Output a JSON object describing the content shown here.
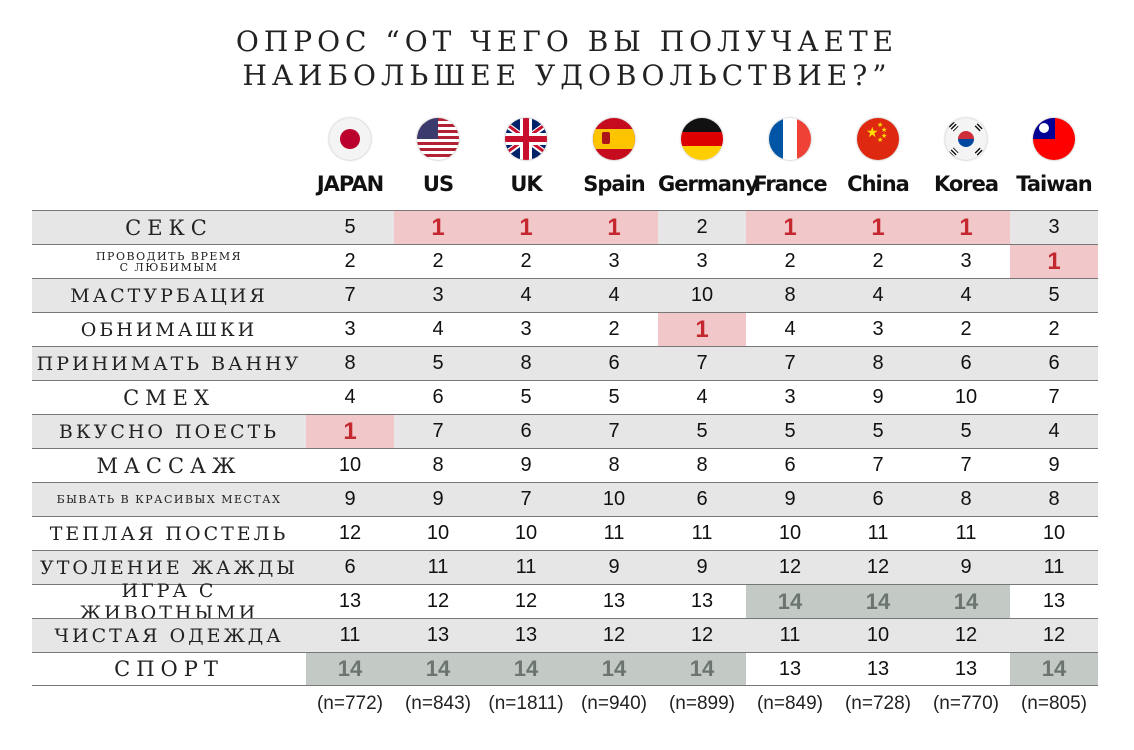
{
  "title": [
    "ОПРОС “ОТ ЧЕГО ВЫ ПОЛУЧАЕТЕ",
    "НАИБОЛЬШЕЕ УДОВОЛЬСТВИЕ?”"
  ],
  "colors": {
    "top_fill": "#f1c7c9",
    "top_text": "#c4282f",
    "bottom_fill": "#c3cac6",
    "bottom_text": "#6a756f",
    "stripe": "#e6e6e6"
  },
  "chart_data": {
    "type": "table",
    "columns": [
      "JAPAN",
      "US",
      "UK",
      "Spain",
      "Germany",
      "France",
      "China",
      "Korea",
      "Taiwan"
    ],
    "flags": [
      "japan-flag-icon",
      "us-flag-icon",
      "uk-flag-icon",
      "spain-flag-icon",
      "germany-flag-icon",
      "france-flag-icon",
      "china-flag-icon",
      "korea-flag-icon",
      "taiwan-flag-icon"
    ],
    "rows": [
      {
        "label": "СЕКС",
        "values": [
          5,
          1,
          1,
          1,
          2,
          1,
          1,
          1,
          3
        ]
      },
      {
        "label": "ПРОВОДИТЬ ВРЕМЯ С ЛЮБИМЫМ",
        "label_lines": [
          "ПРОВОДИТЬ ВРЕМЯ",
          "С ЛЮБИМЫМ"
        ],
        "values": [
          2,
          2,
          2,
          3,
          3,
          2,
          2,
          3,
          1
        ]
      },
      {
        "label": "МАСТУРБАЦИЯ",
        "values": [
          7,
          3,
          4,
          4,
          10,
          8,
          4,
          4,
          5
        ]
      },
      {
        "label": "ОБНИМАШКИ",
        "values": [
          3,
          4,
          3,
          2,
          1,
          4,
          3,
          2,
          2
        ]
      },
      {
        "label": "ПРИНИМАТЬ ВАННУ",
        "values": [
          8,
          5,
          8,
          6,
          7,
          7,
          8,
          6,
          6
        ]
      },
      {
        "label": "СМЕХ",
        "values": [
          4,
          6,
          5,
          5,
          4,
          3,
          9,
          10,
          7
        ]
      },
      {
        "label": "ВКУСНО ПОЕСТЬ",
        "values": [
          1,
          7,
          6,
          7,
          5,
          5,
          5,
          5,
          4
        ]
      },
      {
        "label": "МАССАЖ",
        "values": [
          10,
          8,
          9,
          8,
          8,
          6,
          7,
          7,
          9
        ]
      },
      {
        "label": "БЫВАТЬ В КРАСИВЫХ МЕСТАХ",
        "values": [
          9,
          9,
          7,
          10,
          6,
          9,
          6,
          8,
          8
        ]
      },
      {
        "label": "ТЕПЛАЯ ПОСТЕЛЬ",
        "values": [
          12,
          10,
          10,
          11,
          11,
          10,
          11,
          11,
          10
        ]
      },
      {
        "label": "УТОЛЕНИЕ ЖАЖДЫ",
        "values": [
          6,
          11,
          11,
          9,
          9,
          12,
          12,
          9,
          11
        ]
      },
      {
        "label": "ИГРА С ЖИВОТНЫМИ",
        "values": [
          13,
          12,
          12,
          13,
          13,
          14,
          14,
          14,
          13
        ]
      },
      {
        "label": "ЧИСТАЯ ОДЕЖДА",
        "values": [
          11,
          13,
          13,
          12,
          12,
          11,
          10,
          12,
          12
        ]
      },
      {
        "label": "СПОРТ",
        "values": [
          14,
          14,
          14,
          14,
          14,
          13,
          13,
          13,
          14
        ]
      }
    ],
    "sample_sizes": [
      "(n=772)",
      "(n=843)",
      "(n=1811)",
      "(n=940)",
      "(n=899)",
      "(n=849)",
      "(n=728)",
      "(n=770)",
      "(n=805)"
    ]
  }
}
